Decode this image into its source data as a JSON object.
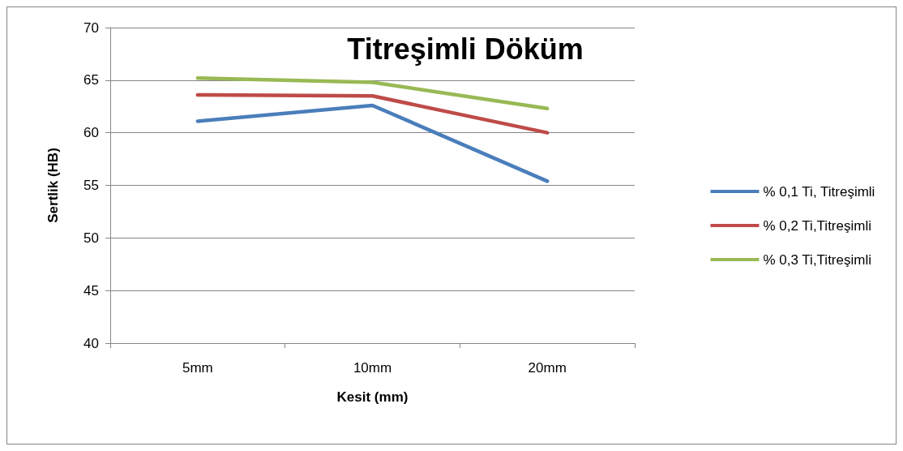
{
  "chart_data": {
    "type": "line",
    "title": "Titreşimli Döküm",
    "xlabel": "Kesit (mm)",
    "ylabel": "Sertlik (HB)",
    "categories": [
      "5mm",
      "10mm",
      "20mm"
    ],
    "series": [
      {
        "name": "% 0,1 Ti, Titreşimli",
        "color": "#4a7ebb",
        "values": [
          61.1,
          62.6,
          55.4
        ]
      },
      {
        "name": "% 0,2 Ti,Titreşimli",
        "color": "#be4b48",
        "values": [
          63.6,
          63.5,
          60.0
        ]
      },
      {
        "name": "% 0,3 Ti,Titreşimli",
        "color": "#98b954",
        "values": [
          65.2,
          64.8,
          62.3
        ]
      }
    ],
    "ylim": [
      40,
      70
    ],
    "yticks": [
      40,
      45,
      50,
      55,
      60,
      65,
      70
    ],
    "grid": "y",
    "legend": "right",
    "marker": "none",
    "line_style": "solid"
  }
}
